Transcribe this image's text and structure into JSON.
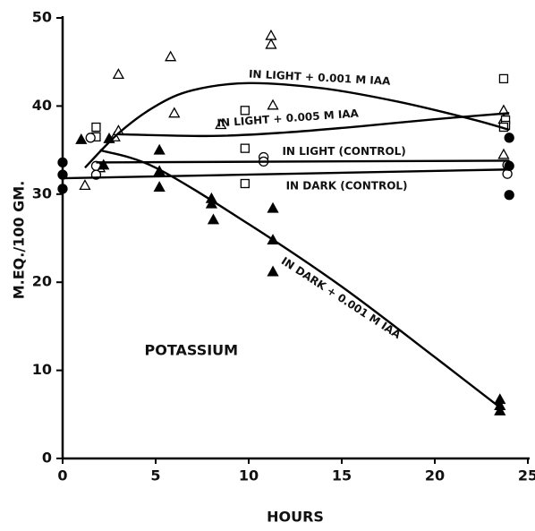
{
  "chart_data": {
    "type": "scatter",
    "title": "POTASSIUM",
    "x_label": "HOURS",
    "y_label": "M.EQ./100 GM.",
    "xlim": [
      0,
      25
    ],
    "xticks": [
      0,
      5,
      10,
      15,
      20,
      25
    ],
    "ylim": [
      0,
      50
    ],
    "yticks": [
      0,
      10,
      20,
      30,
      40,
      50
    ],
    "grid": false,
    "series": [
      {
        "marker": "open-triangle",
        "color": "#000000",
        "x": [
          1.2,
          2,
          2.8,
          3,
          3,
          5.8,
          6,
          8.5,
          11.2,
          11.2,
          11.3,
          23.7,
          23.7,
          23.7
        ],
        "values": [
          31.0,
          33,
          36.5,
          37.2,
          43.6,
          45.6,
          39.2,
          37.9,
          48,
          47,
          40.1,
          39.5,
          38.5,
          34.5
        ]
      },
      {
        "marker": "open-square",
        "color": "#000000",
        "x": [
          1.8,
          1.8,
          9.8,
          9.8,
          9.8,
          23.7,
          23.8,
          23.8,
          23.7
        ],
        "values": [
          37.6,
          36.5,
          39.5,
          35.2,
          31.2,
          43.1,
          38.4,
          37.8,
          37.6
        ]
      },
      {
        "marker": "open-circle",
        "color": "#000000",
        "x": [
          1.5,
          1.8,
          1.8,
          10.8,
          10.8,
          23.9,
          23.9
        ],
        "values": [
          36.4,
          33.2,
          32.2,
          34.2,
          33.7,
          33.3,
          32.3
        ]
      },
      {
        "marker": "filled-circle",
        "color": "#000000",
        "x": [
          0,
          0,
          0,
          24,
          24,
          24
        ],
        "values": [
          33.6,
          32.2,
          30.6,
          36.4,
          33.2,
          29.9
        ]
      },
      {
        "marker": "filled-triangle",
        "color": "#000000",
        "x": [
          1,
          2.2,
          2.5,
          5.2,
          5.2,
          5.2,
          8,
          8,
          8.1,
          11.3,
          11.3,
          11.3,
          23.5,
          23.5,
          23.5
        ],
        "values": [
          36.2,
          33.3,
          36.3,
          35,
          32.6,
          30.8,
          29.5,
          28.9,
          27.1,
          28.4,
          24.8,
          21.2,
          6.7,
          6,
          5.4
        ]
      },
      {
        "name": "IN LIGHT + 0.001 M IAA",
        "style": "line",
        "color": "#000000",
        "x": [
          1.2,
          3,
          5,
          7,
          10,
          14,
          18,
          22,
          24
        ],
        "values": [
          33,
          36.9,
          40,
          41.8,
          42.6,
          42,
          40.5,
          38.5,
          37.3
        ]
      },
      {
        "name": "IN LIGHT + 0.005 M IAA",
        "style": "line",
        "color": "#000000",
        "x": [
          3,
          8,
          12,
          16,
          20,
          24
        ],
        "values": [
          36.8,
          36.6,
          37,
          37.7,
          38.5,
          39.2
        ]
      },
      {
        "name": "IN LIGHT  (CONTROL)",
        "style": "line",
        "color": "#000000",
        "x": [
          1.8,
          24
        ],
        "values": [
          33.6,
          33.8
        ]
      },
      {
        "name": "IN DARK  (CONTROL)",
        "style": "line",
        "color": "#000000",
        "x": [
          0,
          24
        ],
        "values": [
          31.8,
          32.8
        ]
      },
      {
        "name": "IN DARK + 0.001 M IAA",
        "style": "line",
        "color": "#000000",
        "x": [
          2,
          5,
          10,
          15,
          20,
          23.5
        ],
        "values": [
          35,
          33,
          26.6,
          19.5,
          11.5,
          5.8
        ]
      }
    ]
  }
}
